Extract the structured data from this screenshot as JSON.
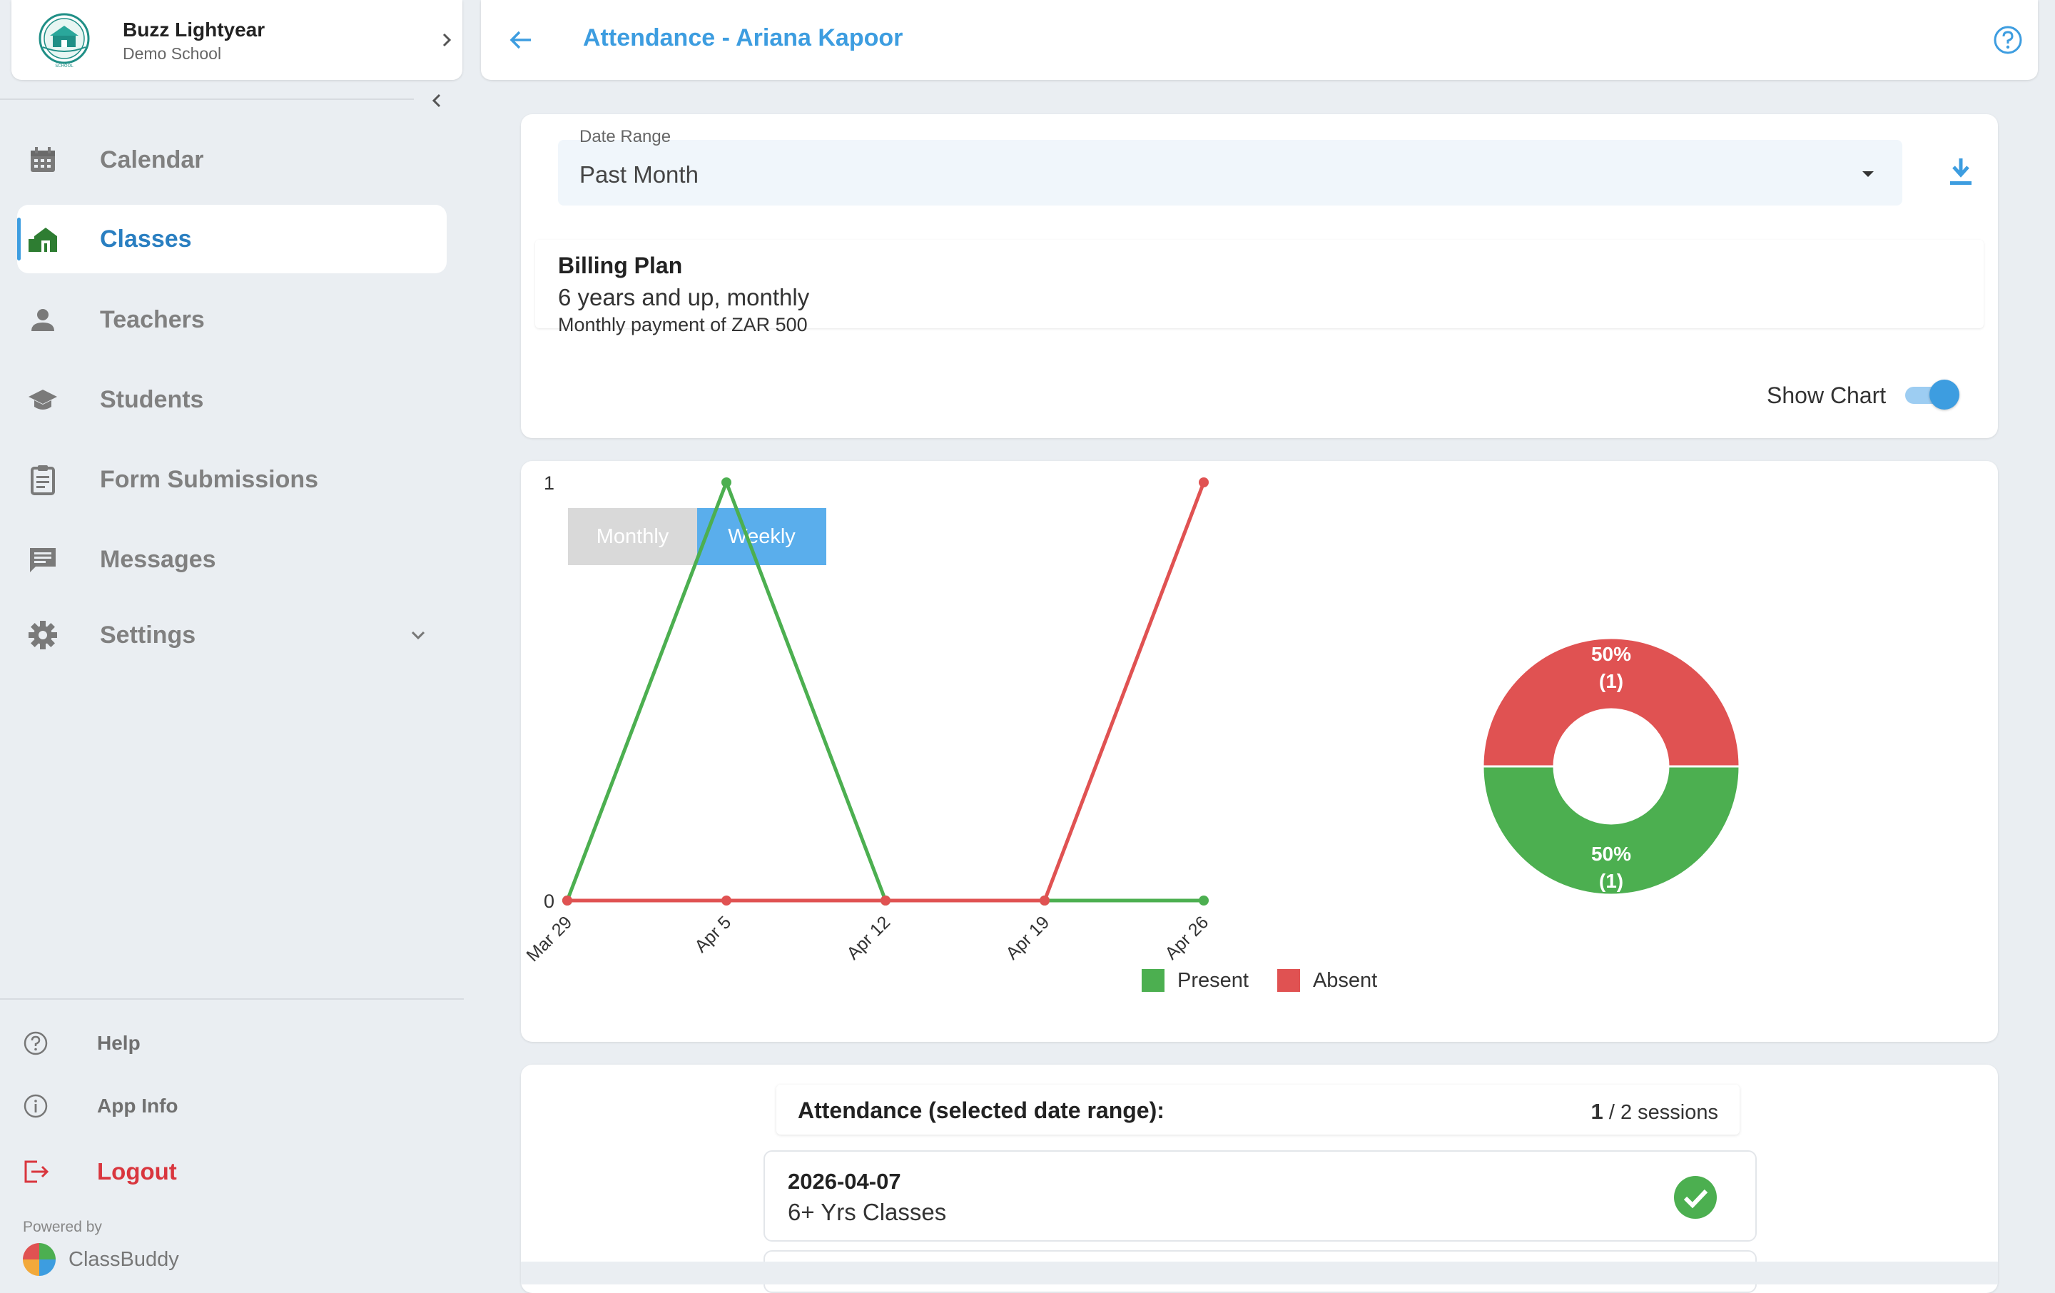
{
  "profile": {
    "name": "Buzz Lightyear",
    "school": "Demo School",
    "logo_text": "SCHOOL"
  },
  "nav": {
    "items": [
      {
        "label": "Calendar",
        "icon": "calendar-icon"
      },
      {
        "label": "Classes",
        "icon": "classes-icon",
        "active": true
      },
      {
        "label": "Teachers",
        "icon": "person-icon"
      },
      {
        "label": "Students",
        "icon": "graduation-cap-icon"
      },
      {
        "label": "Form Submissions",
        "icon": "clipboard-icon"
      },
      {
        "label": "Messages",
        "icon": "message-icon"
      },
      {
        "label": "Settings",
        "icon": "gear-icon"
      }
    ]
  },
  "bottom_nav": {
    "help": "Help",
    "app_info": "App Info",
    "logout": "Logout"
  },
  "footer": {
    "powered_by": "Powered by",
    "brand": "ClassBuddy"
  },
  "header": {
    "title": "Attendance - Ariana Kapoor"
  },
  "filters": {
    "date_range_label": "Date Range",
    "date_range_value": "Past Month"
  },
  "billing": {
    "title": "Billing Plan",
    "description": "6 years and up, monthly",
    "payment": "Monthly payment of ZAR 500"
  },
  "chart_toggle": {
    "label": "Show Chart",
    "enabled": true
  },
  "chart_controls": {
    "monthly": "Monthly",
    "weekly": "Weekly",
    "selected": "Weekly"
  },
  "colors": {
    "accent": "#3d9de0",
    "present": "#4caf50",
    "absent": "#e05252"
  },
  "chart_data": [
    {
      "type": "line",
      "categories": [
        "Mar 29",
        "Apr 5",
        "Apr 12",
        "Apr 19",
        "Apr 26"
      ],
      "series": [
        {
          "name": "Present",
          "values": [
            0,
            1,
            0,
            0,
            0
          ]
        },
        {
          "name": "Absent",
          "values": [
            0,
            0,
            0,
            0,
            1
          ]
        }
      ],
      "y_ticks": [
        "0",
        "1"
      ],
      "ylim": [
        0,
        1
      ],
      "legend": "bottom"
    },
    {
      "type": "pie",
      "donut": true,
      "slices": [
        {
          "name": "Absent",
          "value": 1,
          "percent": 50,
          "label_pct": "50%",
          "label_count": "(1)"
        },
        {
          "name": "Present",
          "value": 1,
          "percent": 50,
          "label_pct": "50%",
          "label_count": "(1)"
        }
      ]
    }
  ],
  "attendance": {
    "title": "Attendance (selected date range):",
    "attended": "1",
    "total": "/ 2 sessions",
    "sessions": [
      {
        "date": "2026-04-07",
        "class": "6+ Yrs Classes",
        "status": "present"
      }
    ]
  }
}
